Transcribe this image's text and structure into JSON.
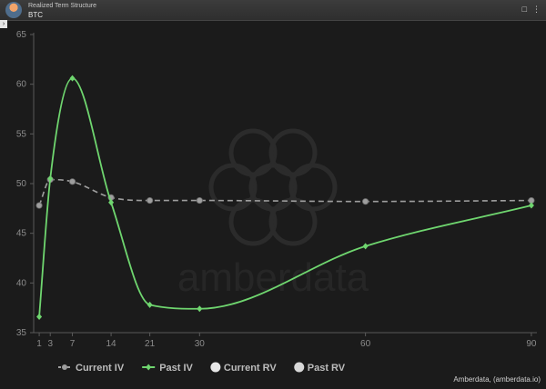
{
  "header": {
    "subtitle": "Realized Term Structure",
    "title": "BTC"
  },
  "icons": {
    "logo": "amberdata-logo",
    "bookmark": "bookmark-icon",
    "menu": "menu-icon",
    "collapse": "chevron-right-icon"
  },
  "credit": "Amberdata, (amberdata.io)",
  "watermark": "amberdata",
  "chart_data": {
    "type": "line",
    "title": "",
    "xlabel": "",
    "ylabel": "",
    "x_ticks": [
      1,
      3,
      7,
      14,
      21,
      30,
      60,
      90
    ],
    "y_ticks": [
      35,
      40,
      45,
      50,
      55,
      60,
      65
    ],
    "xlim": [
      0,
      91
    ],
    "ylim": [
      35,
      65
    ],
    "legend_position": "bottom-left",
    "grid": false,
    "series": [
      {
        "name": "Current IV",
        "color": "#9e9e9e",
        "style": "dashed",
        "marker": "circle",
        "x": [
          1,
          3,
          7,
          14,
          21,
          30,
          60,
          90
        ],
        "y": [
          47.8,
          50.4,
          50.2,
          48.6,
          48.3,
          48.3,
          48.2,
          48.3
        ]
      },
      {
        "name": "Past IV",
        "color": "#6fd66f",
        "style": "solid",
        "marker": "diamond",
        "x": [
          1,
          3,
          7,
          14,
          21,
          30,
          60,
          90
        ],
        "y": [
          36.6,
          50.5,
          60.6,
          48.1,
          37.8,
          37.4,
          43.7,
          47.8
        ]
      },
      {
        "name": "Current RV",
        "color": "#e8e8e8",
        "style": "none",
        "marker": "circle",
        "x": [],
        "y": []
      },
      {
        "name": "Past RV",
        "color": "#d8d8d8",
        "style": "none",
        "marker": "circle",
        "x": [],
        "y": []
      }
    ]
  }
}
